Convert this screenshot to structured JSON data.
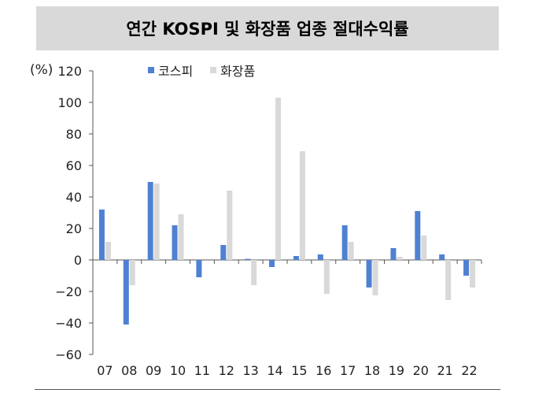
{
  "title": "연간 KOSPI 및 화장품 업종 절대수익률",
  "unit": "(%)",
  "colors": {
    "kospi": "#4f81d3",
    "cosmetics": "#d9d9d9",
    "title_bg": "#d9d9d9"
  },
  "chart_data": {
    "type": "bar",
    "title": "연간 KOSPI 및 화장품 업종 절대수익률",
    "ylabel": "(%)",
    "xlabel": "",
    "ylim": [
      -60,
      120
    ],
    "yticks": [
      120,
      100,
      80,
      60,
      40,
      20,
      0,
      -20,
      -40,
      -60
    ],
    "ytick_labels": [
      "120",
      "100",
      "80",
      "60",
      "40",
      "20",
      "0",
      "−20",
      "−40",
      "−60"
    ],
    "categories": [
      "07",
      "08",
      "09",
      "10",
      "11",
      "12",
      "13",
      "14",
      "15",
      "16",
      "17",
      "18",
      "19",
      "20",
      "21",
      "22"
    ],
    "series": [
      {
        "name": "코스피",
        "color": "#4f81d3",
        "values": [
          32,
          -41,
          49.5,
          22,
          -11,
          9.5,
          0.7,
          -4.5,
          2.5,
          3.5,
          22,
          -17.5,
          7.5,
          31,
          3.5,
          -10
        ]
      },
      {
        "name": "화장품",
        "color": "#d9d9d9",
        "values": [
          11.5,
          -16,
          48.5,
          29,
          0,
          44,
          -16,
          103,
          69,
          -21.5,
          11.5,
          -22.5,
          2,
          15.5,
          -25.5,
          -17.5
        ]
      }
    ],
    "legend_position": "top",
    "grid": false
  }
}
